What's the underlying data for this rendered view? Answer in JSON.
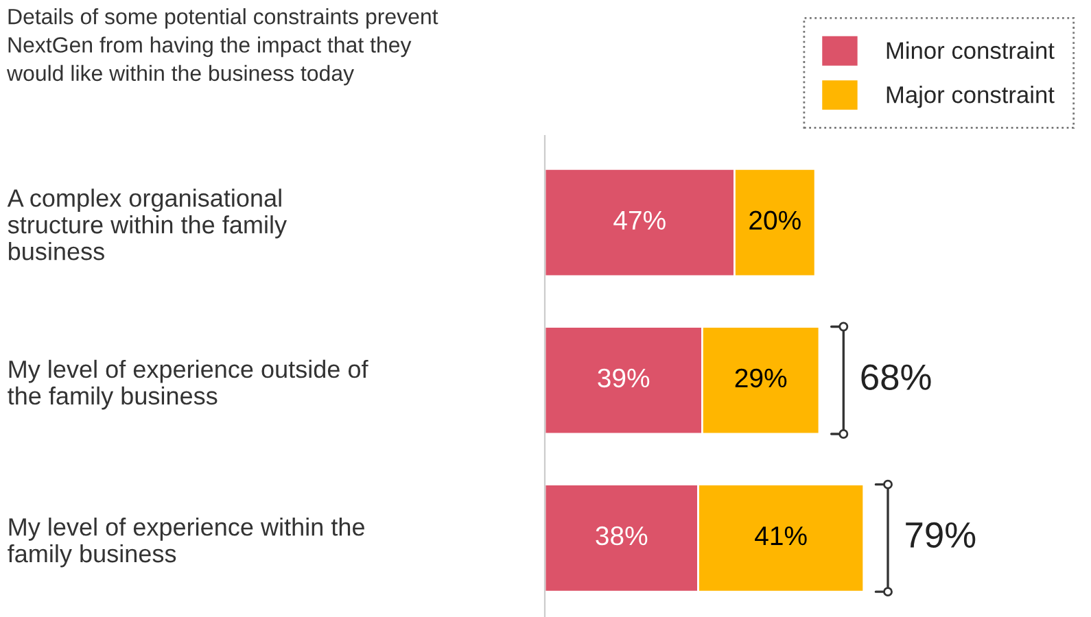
{
  "chart_data": {
    "type": "bar",
    "orientation": "horizontal",
    "stacked": true,
    "title": "Details of some potential constraints prevent\nNextGen from having the impact that they\nwould like within the business today",
    "categories": [
      "A complex organisational\nstructure within the family\nbusiness",
      "My level of experience outside of\nthe family business",
      "My level of experience within the\nfamily business"
    ],
    "series": [
      {
        "name": "Minor constraint",
        "color": "#dc5369",
        "values": [
          47,
          39,
          38
        ],
        "value_labels": [
          "47%",
          "39%",
          "38%"
        ]
      },
      {
        "name": "Major constraint",
        "color": "#ffb600",
        "values": [
          20,
          29,
          41
        ],
        "value_labels": [
          "20%",
          "29%",
          "41%"
        ]
      }
    ],
    "totals": [
      null,
      "68%",
      "79%"
    ],
    "legend": "top right",
    "grid": false,
    "tick_labels": "y"
  }
}
